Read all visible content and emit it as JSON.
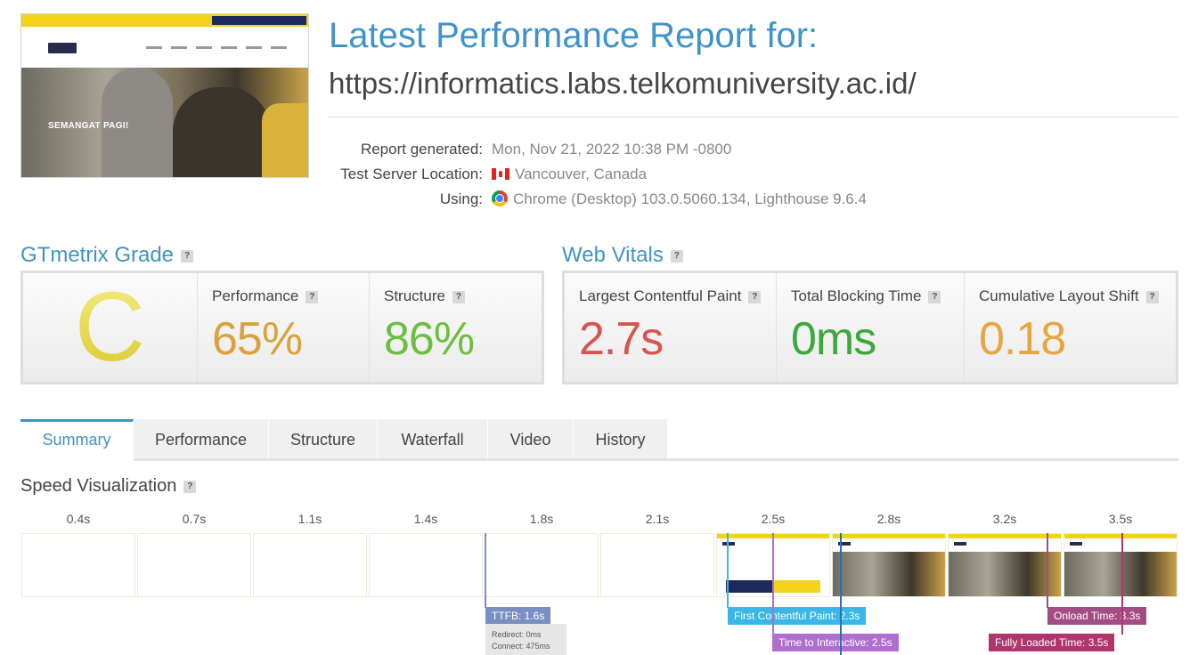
{
  "header": {
    "title": "Latest Performance Report for:",
    "url": "https://informatics.labs.telkomuniversity.ac.id/",
    "screenshot_caption": "SEMANGAT PAGI!"
  },
  "meta": {
    "report_generated_label": "Report generated:",
    "report_generated_value": "Mon, Nov 21, 2022 10:38 PM -0800",
    "location_label": "Test Server Location:",
    "location_value": "Vancouver, Canada",
    "using_label": "Using:",
    "using_value": "Chrome (Desktop) 103.0.5060.134, Lighthouse 9.6.4"
  },
  "grade": {
    "heading": "GTmetrix Grade",
    "help": "?",
    "letter": "C",
    "performance_label": "Performance",
    "performance_value": "65%",
    "structure_label": "Structure",
    "structure_value": "86%"
  },
  "web_vitals": {
    "heading": "Web Vitals",
    "help": "?",
    "lcp_label": "Largest Contentful Paint",
    "lcp_value": "2.7s",
    "tbt_label": "Total Blocking Time",
    "tbt_value": "0ms",
    "cls_label": "Cumulative Layout Shift",
    "cls_value": "0.18"
  },
  "colors": {
    "accent": "#3f93c8",
    "grade_c": "#ddd23c",
    "performance": "#d9a23b",
    "structure": "#6cbf3f",
    "lcp": "#d9534f",
    "tbt": "#3da83d",
    "cls": "#e6a640"
  },
  "tabs": [
    {
      "label": "Summary",
      "active": true
    },
    {
      "label": "Performance",
      "active": false
    },
    {
      "label": "Structure",
      "active": false
    },
    {
      "label": "Waterfall",
      "active": false
    },
    {
      "label": "Video",
      "active": false
    },
    {
      "label": "History",
      "active": false
    }
  ],
  "speed_visualization": {
    "title": "Speed Visualization",
    "help": "?",
    "frames": [
      {
        "time": "0.4s",
        "state": "blank"
      },
      {
        "time": "0.7s",
        "state": "blank"
      },
      {
        "time": "1.1s",
        "state": "blank"
      },
      {
        "time": "1.4s",
        "state": "blank"
      },
      {
        "time": "1.8s",
        "state": "blank"
      },
      {
        "time": "2.1s",
        "state": "blank"
      },
      {
        "time": "2.5s",
        "state": "partial"
      },
      {
        "time": "2.8s",
        "state": "full"
      },
      {
        "time": "3.2s",
        "state": "full"
      },
      {
        "time": "3.5s",
        "state": "full"
      }
    ],
    "markers": {
      "ttfb": "TTFB: 1.6s",
      "ttfb_redirect": "Redirect: 0ms",
      "ttfb_connect": "Connect: 475ms",
      "fcp": "First Contentful Paint: 2.3s",
      "tti": "Time to Interactive: 2.5s",
      "onload": "Onload Time: 3.3s",
      "fully_loaded": "Fully Loaded Time: 3.5s"
    }
  }
}
